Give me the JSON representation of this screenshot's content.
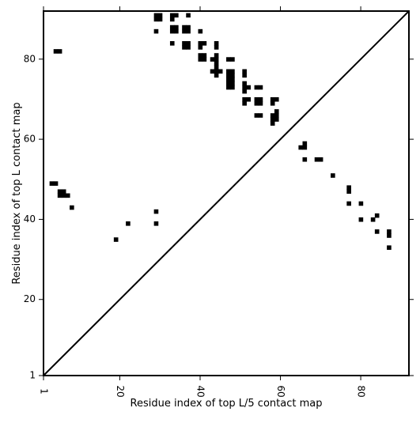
{
  "chart_data": {
    "type": "heatmap",
    "title": "",
    "xlabel": "Residue index of top L/5 contact map",
    "ylabel": "Residue index of top L contact map",
    "xlim": [
      1,
      92
    ],
    "ylim": [
      1,
      92
    ],
    "x_ticks": [
      1,
      20,
      40,
      60,
      80
    ],
    "y_ticks": [
      1,
      20,
      40,
      60,
      80
    ],
    "x_tick_labels": [
      "1",
      "20",
      "40",
      "60",
      "80"
    ],
    "y_tick_labels": [
      "1",
      "20",
      "40",
      "60",
      "80"
    ],
    "x_tick_rotation": "vertical",
    "diagonal_line": true,
    "grid": false,
    "color": "#000000",
    "lower_triangle_contacts": [
      [
        3,
        49
      ],
      [
        4,
        49
      ],
      [
        5,
        47
      ],
      [
        5,
        46
      ],
      [
        6,
        47
      ],
      [
        6,
        46
      ],
      [
        7,
        46
      ],
      [
        8,
        43
      ],
      [
        19,
        35
      ],
      [
        22,
        39
      ],
      [
        29,
        42
      ],
      [
        29,
        39
      ],
      [
        66,
        58
      ],
      [
        66,
        55
      ],
      [
        69,
        55
      ],
      [
        70,
        55
      ],
      [
        73,
        51
      ],
      [
        77,
        48
      ],
      [
        77,
        47
      ],
      [
        77,
        44
      ],
      [
        80,
        44
      ],
      [
        80,
        40
      ],
      [
        83,
        40
      ],
      [
        84,
        41
      ],
      [
        84,
        37
      ],
      [
        87,
        37
      ],
      [
        87,
        36
      ],
      [
        87,
        33
      ]
    ],
    "upper_triangle_contacts": [
      [
        4,
        82
      ],
      [
        5,
        82
      ],
      [
        29,
        91
      ],
      [
        30,
        91
      ],
      [
        30,
        90
      ],
      [
        29,
        90
      ],
      [
        29,
        87
      ],
      [
        33,
        91
      ],
      [
        33,
        90
      ],
      [
        34,
        91
      ],
      [
        33,
        88
      ],
      [
        34,
        88
      ],
      [
        33,
        87
      ],
      [
        34,
        87
      ],
      [
        33,
        84
      ],
      [
        36,
        88
      ],
      [
        37,
        88
      ],
      [
        36,
        87
      ],
      [
        37,
        87
      ],
      [
        36,
        84
      ],
      [
        37,
        84
      ],
      [
        36,
        83
      ],
      [
        37,
        83
      ],
      [
        37,
        91
      ],
      [
        40,
        87
      ],
      [
        40,
        84
      ],
      [
        41,
        84
      ],
      [
        40,
        83
      ],
      [
        40,
        81
      ],
      [
        41,
        81
      ],
      [
        40,
        80
      ],
      [
        41,
        80
      ],
      [
        43,
        80
      ],
      [
        44,
        84
      ],
      [
        44,
        83
      ],
      [
        44,
        81
      ],
      [
        44,
        80
      ],
      [
        44,
        79
      ],
      [
        44,
        78
      ],
      [
        43,
        77
      ],
      [
        44,
        77
      ],
      [
        45,
        77
      ],
      [
        44,
        76
      ],
      [
        47,
        80
      ],
      [
        48,
        80
      ],
      [
        47,
        77
      ],
      [
        48,
        77
      ],
      [
        47,
        76
      ],
      [
        48,
        76
      ],
      [
        47,
        75
      ],
      [
        48,
        75
      ],
      [
        47,
        74
      ],
      [
        48,
        74
      ],
      [
        47,
        73
      ],
      [
        48,
        73
      ],
      [
        51,
        77
      ],
      [
        51,
        76
      ],
      [
        51,
        74
      ],
      [
        51,
        73
      ],
      [
        52,
        73
      ],
      [
        51,
        72
      ],
      [
        51,
        70
      ],
      [
        52,
        70
      ],
      [
        51,
        69
      ],
      [
        54,
        73
      ],
      [
        55,
        73
      ],
      [
        54,
        70
      ],
      [
        55,
        70
      ],
      [
        54,
        69
      ],
      [
        55,
        69
      ],
      [
        54,
        66
      ],
      [
        55,
        66
      ],
      [
        58,
        70
      ],
      [
        59,
        70
      ],
      [
        58,
        69
      ],
      [
        58,
        66
      ],
      [
        59,
        66
      ],
      [
        58,
        65
      ],
      [
        59,
        65
      ],
      [
        58,
        64
      ],
      [
        59,
        67
      ],
      [
        65,
        58
      ],
      [
        66,
        59
      ]
    ]
  }
}
